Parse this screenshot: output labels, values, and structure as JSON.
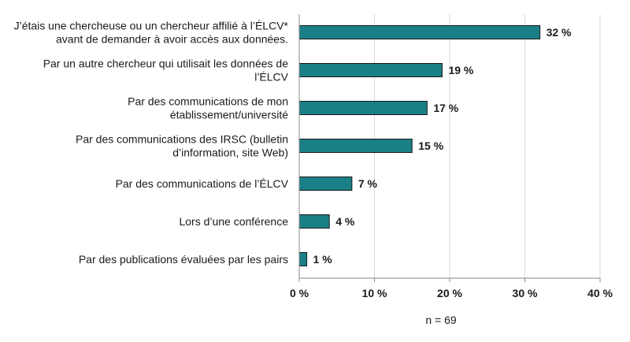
{
  "chart_data": {
    "type": "bar",
    "orientation": "horizontal",
    "categories": [
      [
        "J’étais une chercheuse ou un chercheur affilié à l’ÉLCV*",
        "avant de demander à avoir accès aux données."
      ],
      [
        "Par un autre chercheur qui utilisait les données de",
        "l’ÉLCV"
      ],
      [
        "Par des communications de mon",
        "établissement/université"
      ],
      [
        "Par des communications des IRSC (bulletin",
        "d’information, site Web)"
      ],
      [
        "Par des communications de l’ÉLCV"
      ],
      [
        "Lors d’une conférence"
      ],
      [
        "Par des publications évaluées par les pairs"
      ]
    ],
    "values": [
      32,
      19,
      17,
      15,
      7,
      4,
      1
    ],
    "value_labels": [
      "32 %",
      "19 %",
      "17 %",
      "15 %",
      "7 %",
      "4 %",
      "1 %"
    ],
    "xlim": [
      0,
      40
    ],
    "xticks": [
      0,
      10,
      20,
      30,
      40
    ],
    "xtick_labels": [
      "0 %",
      "10 %",
      "20 %",
      "30 %",
      "40 %"
    ],
    "grid": "vertical",
    "note": "n = 69",
    "bar_color": "#1a7f87",
    "bar_edge_color": "#1a1a1a",
    "grid_color": "#d9d9d9"
  }
}
